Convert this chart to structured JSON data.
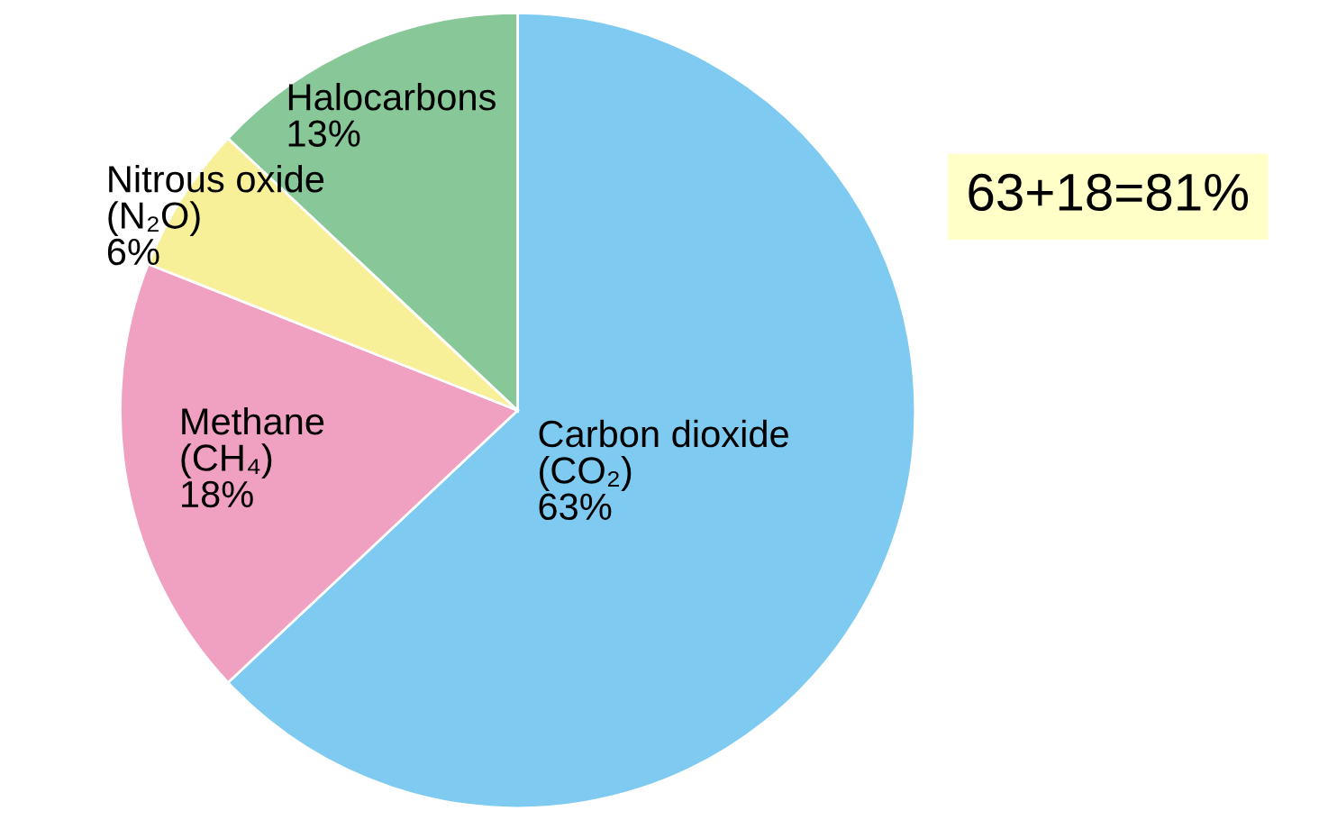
{
  "chart_data": {
    "type": "pie",
    "categories": [
      "Carbon dioxide\n(CO₂)",
      "Methane\n(CH₄)",
      "Nitrous oxide\n(N₂O)",
      "Halocarbons"
    ],
    "values": [
      63,
      18,
      6,
      13
    ],
    "value_labels": [
      "63%",
      "18%",
      "6%",
      "13%"
    ],
    "colors": [
      "#7ecaf0",
      "#f0a0c0",
      "#f8f098",
      "#88c898"
    ],
    "annotations": [
      "63+18=81%"
    ],
    "legend": false
  }
}
